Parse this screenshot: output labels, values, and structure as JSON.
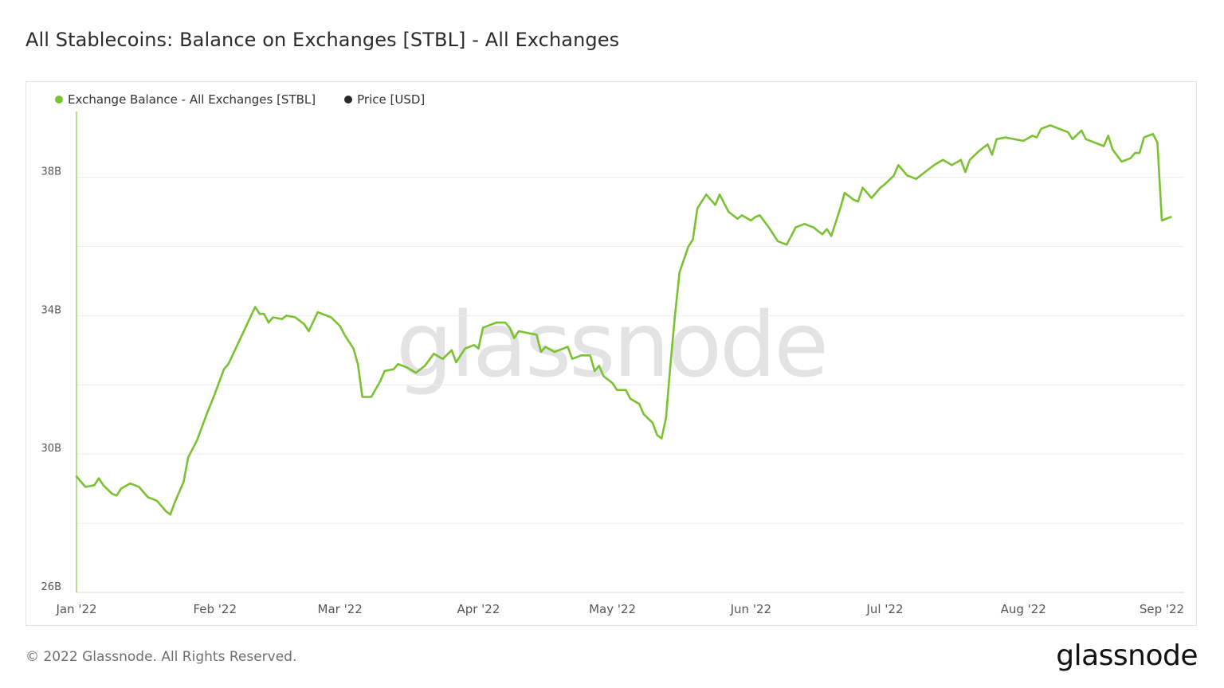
{
  "header": {
    "title": "All Stablecoins: Balance on Exchanges [STBL] - All Exchanges"
  },
  "legend": {
    "items": [
      {
        "label": "Exchange Balance - All Exchanges [STBL]",
        "color": "#7ac231"
      },
      {
        "label": "Price [USD]",
        "color": "#2a2a2a"
      }
    ]
  },
  "watermark": "glassnode",
  "footer": {
    "copyright": "© 2022 Glassnode. All Rights Reserved.",
    "brand": "glassnode"
  },
  "colors": {
    "series": "#7ac231",
    "grid": "#ececec",
    "watermark": "#e3e3e3"
  },
  "chart_data": {
    "type": "line",
    "title": "All Stablecoins: Balance on Exchanges [STBL] - All Exchanges",
    "xlabel": "",
    "ylabel": "",
    "ylim": [
      26,
      39.9
    ],
    "yticks": [
      {
        "value": 26,
        "label": "26B"
      },
      {
        "value": 28,
        "label": ""
      },
      {
        "value": 30,
        "label": "30B"
      },
      {
        "value": 32,
        "label": ""
      },
      {
        "value": 34,
        "label": "34B"
      },
      {
        "value": 36,
        "label": ""
      },
      {
        "value": 38,
        "label": "38B"
      }
    ],
    "xlim": [
      "2022-01-01",
      "2022-09-06"
    ],
    "xticks": [
      {
        "date": "2022-01-01",
        "label": "Jan '22"
      },
      {
        "date": "2022-02-01",
        "label": "Feb '22"
      },
      {
        "date": "2022-03-01",
        "label": "Mar '22"
      },
      {
        "date": "2022-04-01",
        "label": "Apr '22"
      },
      {
        "date": "2022-05-01",
        "label": "May '22"
      },
      {
        "date": "2022-06-01",
        "label": "Jun '22"
      },
      {
        "date": "2022-07-01",
        "label": "Jul '22"
      },
      {
        "date": "2022-08-01",
        "label": "Aug '22"
      },
      {
        "date": "2022-09-01",
        "label": "Sep '22"
      }
    ],
    "grid": true,
    "legend_position": "top-left",
    "series": [
      {
        "name": "Exchange Balance - All Exchanges [STBL]",
        "color": "#7ac231",
        "points": [
          [
            "2022-01-01",
            29.35
          ],
          [
            "2022-01-03",
            29.05
          ],
          [
            "2022-01-05",
            29.1
          ],
          [
            "2022-01-06",
            29.3
          ],
          [
            "2022-01-07",
            29.1
          ],
          [
            "2022-01-09",
            28.85
          ],
          [
            "2022-01-10",
            28.8
          ],
          [
            "2022-01-11",
            29.0
          ],
          [
            "2022-01-13",
            29.15
          ],
          [
            "2022-01-15",
            29.05
          ],
          [
            "2022-01-17",
            28.75
          ],
          [
            "2022-01-19",
            28.65
          ],
          [
            "2022-01-21",
            28.35
          ],
          [
            "2022-01-22",
            28.25
          ],
          [
            "2022-01-23",
            28.6
          ],
          [
            "2022-01-25",
            29.2
          ],
          [
            "2022-01-26",
            29.9
          ],
          [
            "2022-01-28",
            30.4
          ],
          [
            "2022-01-30",
            31.1
          ],
          [
            "2022-02-01",
            31.75
          ],
          [
            "2022-02-03",
            32.45
          ],
          [
            "2022-02-04",
            32.6
          ],
          [
            "2022-02-06",
            33.15
          ],
          [
            "2022-02-08",
            33.7
          ],
          [
            "2022-02-10",
            34.25
          ],
          [
            "2022-02-11",
            34.05
          ],
          [
            "2022-02-12",
            34.05
          ],
          [
            "2022-02-13",
            33.8
          ],
          [
            "2022-02-14",
            33.95
          ],
          [
            "2022-02-16",
            33.9
          ],
          [
            "2022-02-17",
            34.0
          ],
          [
            "2022-02-19",
            33.95
          ],
          [
            "2022-02-21",
            33.75
          ],
          [
            "2022-02-22",
            33.55
          ],
          [
            "2022-02-24",
            34.1
          ],
          [
            "2022-02-25",
            34.05
          ],
          [
            "2022-02-27",
            33.95
          ],
          [
            "2022-03-01",
            33.7
          ],
          [
            "2022-03-02",
            33.45
          ],
          [
            "2022-03-04",
            33.05
          ],
          [
            "2022-03-05",
            32.6
          ],
          [
            "2022-03-06",
            31.65
          ],
          [
            "2022-03-08",
            31.65
          ],
          [
            "2022-03-10",
            32.1
          ],
          [
            "2022-03-11",
            32.4
          ],
          [
            "2022-03-13",
            32.45
          ],
          [
            "2022-03-14",
            32.6
          ],
          [
            "2022-03-16",
            32.5
          ],
          [
            "2022-03-18",
            32.35
          ],
          [
            "2022-03-20",
            32.55
          ],
          [
            "2022-03-22",
            32.9
          ],
          [
            "2022-03-24",
            32.75
          ],
          [
            "2022-03-26",
            33.0
          ],
          [
            "2022-03-27",
            32.65
          ],
          [
            "2022-03-29",
            33.05
          ],
          [
            "2022-03-31",
            33.15
          ],
          [
            "2022-04-01",
            33.05
          ],
          [
            "2022-04-02",
            33.65
          ],
          [
            "2022-04-04",
            33.75
          ],
          [
            "2022-04-05",
            33.8
          ],
          [
            "2022-04-07",
            33.8
          ],
          [
            "2022-04-08",
            33.65
          ],
          [
            "2022-04-09",
            33.35
          ],
          [
            "2022-04-10",
            33.55
          ],
          [
            "2022-04-12",
            33.5
          ],
          [
            "2022-04-14",
            33.45
          ],
          [
            "2022-04-15",
            32.95
          ],
          [
            "2022-04-16",
            33.1
          ],
          [
            "2022-04-18",
            32.95
          ],
          [
            "2022-04-20",
            33.05
          ],
          [
            "2022-04-21",
            33.1
          ],
          [
            "2022-04-22",
            32.75
          ],
          [
            "2022-04-24",
            32.85
          ],
          [
            "2022-04-26",
            32.85
          ],
          [
            "2022-04-27",
            32.4
          ],
          [
            "2022-04-28",
            32.55
          ],
          [
            "2022-04-29",
            32.25
          ],
          [
            "2022-05-01",
            32.05
          ],
          [
            "2022-05-02",
            31.85
          ],
          [
            "2022-05-04",
            31.85
          ],
          [
            "2022-05-05",
            31.6
          ],
          [
            "2022-05-07",
            31.45
          ],
          [
            "2022-05-08",
            31.15
          ],
          [
            "2022-05-10",
            30.9
          ],
          [
            "2022-05-11",
            30.55
          ],
          [
            "2022-05-12",
            30.45
          ],
          [
            "2022-05-13",
            31.05
          ],
          [
            "2022-05-14",
            32.6
          ],
          [
            "2022-05-15",
            34.0
          ],
          [
            "2022-05-16",
            35.25
          ],
          [
            "2022-05-18",
            36.0
          ],
          [
            "2022-05-19",
            36.2
          ],
          [
            "2022-05-20",
            37.1
          ],
          [
            "2022-05-21",
            37.3
          ],
          [
            "2022-05-22",
            37.5
          ],
          [
            "2022-05-24",
            37.2
          ],
          [
            "2022-05-25",
            37.5
          ],
          [
            "2022-05-27",
            37.0
          ],
          [
            "2022-05-29",
            36.8
          ],
          [
            "2022-05-30",
            36.9
          ],
          [
            "2022-06-01",
            36.75
          ],
          [
            "2022-06-02",
            36.85
          ],
          [
            "2022-06-03",
            36.9
          ],
          [
            "2022-06-05",
            36.55
          ],
          [
            "2022-06-07",
            36.15
          ],
          [
            "2022-06-09",
            36.05
          ],
          [
            "2022-06-11",
            36.55
          ],
          [
            "2022-06-13",
            36.65
          ],
          [
            "2022-06-15",
            36.55
          ],
          [
            "2022-06-17",
            36.35
          ],
          [
            "2022-06-18",
            36.5
          ],
          [
            "2022-06-19",
            36.3
          ],
          [
            "2022-06-21",
            37.1
          ],
          [
            "2022-06-22",
            37.55
          ],
          [
            "2022-06-24",
            37.35
          ],
          [
            "2022-06-25",
            37.3
          ],
          [
            "2022-06-26",
            37.7
          ],
          [
            "2022-06-28",
            37.4
          ],
          [
            "2022-06-30",
            37.7
          ],
          [
            "2022-07-01",
            37.8
          ],
          [
            "2022-07-03",
            38.05
          ],
          [
            "2022-07-04",
            38.35
          ],
          [
            "2022-07-06",
            38.05
          ],
          [
            "2022-07-08",
            37.95
          ],
          [
            "2022-07-10",
            38.15
          ],
          [
            "2022-07-12",
            38.35
          ],
          [
            "2022-07-14",
            38.5
          ],
          [
            "2022-07-16",
            38.35
          ],
          [
            "2022-07-18",
            38.5
          ],
          [
            "2022-07-19",
            38.15
          ],
          [
            "2022-07-20",
            38.5
          ],
          [
            "2022-07-22",
            38.75
          ],
          [
            "2022-07-24",
            38.95
          ],
          [
            "2022-07-25",
            38.65
          ],
          [
            "2022-07-26",
            39.1
          ],
          [
            "2022-07-28",
            39.15
          ],
          [
            "2022-07-30",
            39.1
          ],
          [
            "2022-08-01",
            39.05
          ],
          [
            "2022-08-03",
            39.2
          ],
          [
            "2022-08-04",
            39.15
          ],
          [
            "2022-08-05",
            39.4
          ],
          [
            "2022-08-07",
            39.5
          ],
          [
            "2022-08-09",
            39.4
          ],
          [
            "2022-08-11",
            39.3
          ],
          [
            "2022-08-12",
            39.1
          ],
          [
            "2022-08-14",
            39.35
          ],
          [
            "2022-08-15",
            39.1
          ],
          [
            "2022-08-17",
            39.0
          ],
          [
            "2022-08-19",
            38.9
          ],
          [
            "2022-08-20",
            39.2
          ],
          [
            "2022-08-21",
            38.8
          ],
          [
            "2022-08-23",
            38.45
          ],
          [
            "2022-08-25",
            38.55
          ],
          [
            "2022-08-26",
            38.7
          ],
          [
            "2022-08-27",
            38.7
          ],
          [
            "2022-08-28",
            39.15
          ],
          [
            "2022-08-30",
            39.25
          ],
          [
            "2022-08-31",
            39.0
          ],
          [
            "2022-09-01",
            36.75
          ],
          [
            "2022-09-03",
            36.85
          ]
        ]
      }
    ]
  }
}
